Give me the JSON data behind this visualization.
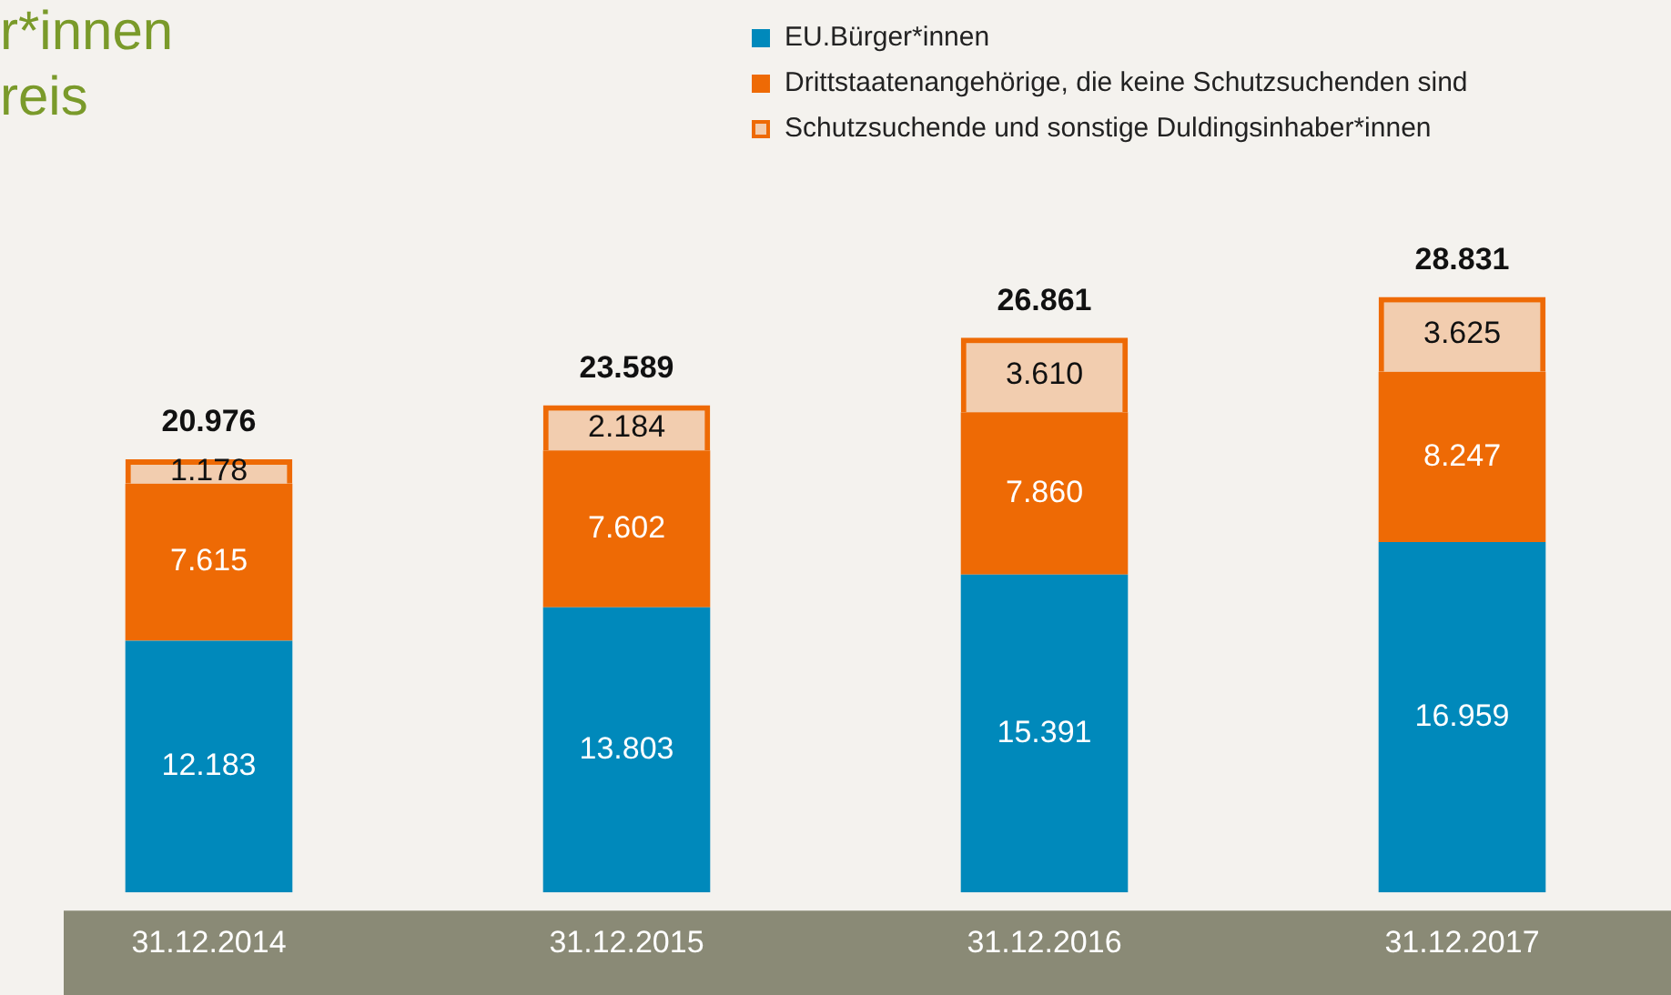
{
  "chart_data": {
    "type": "bar",
    "title": "r*innen\nreis",
    "stacked": true,
    "legend": "top right",
    "grid": false,
    "categories": [
      "31.12.2014",
      "31.12.2015",
      "31.12.2016",
      "31.12.2017"
    ],
    "series": [
      {
        "name": "EU.Bürger*innen",
        "color": "#0089bb",
        "values": [
          12183,
          13803,
          15391,
          16959
        ],
        "value_labels": [
          "12.183",
          "13.803",
          "15.391",
          "16.959"
        ]
      },
      {
        "name": "Drittstaatenangehörige, die keine Schutzsuchenden sind",
        "color": "#ee6a05",
        "values": [
          7615,
          7602,
          7860,
          8247
        ],
        "value_labels": [
          "7.615",
          "7.602",
          "7.860",
          "8.247"
        ]
      },
      {
        "name": "Schutzsuchende und sonstige Duldingsinhaber*innen",
        "color": "#ee6a05",
        "values": [
          1178,
          2184,
          3610,
          3625
        ],
        "value_labels": [
          "1.178",
          "2.184",
          "3.610",
          "3.625"
        ]
      }
    ],
    "totals": [
      "20.976",
      "23.589",
      "26.861",
      "28.831"
    ]
  }
}
